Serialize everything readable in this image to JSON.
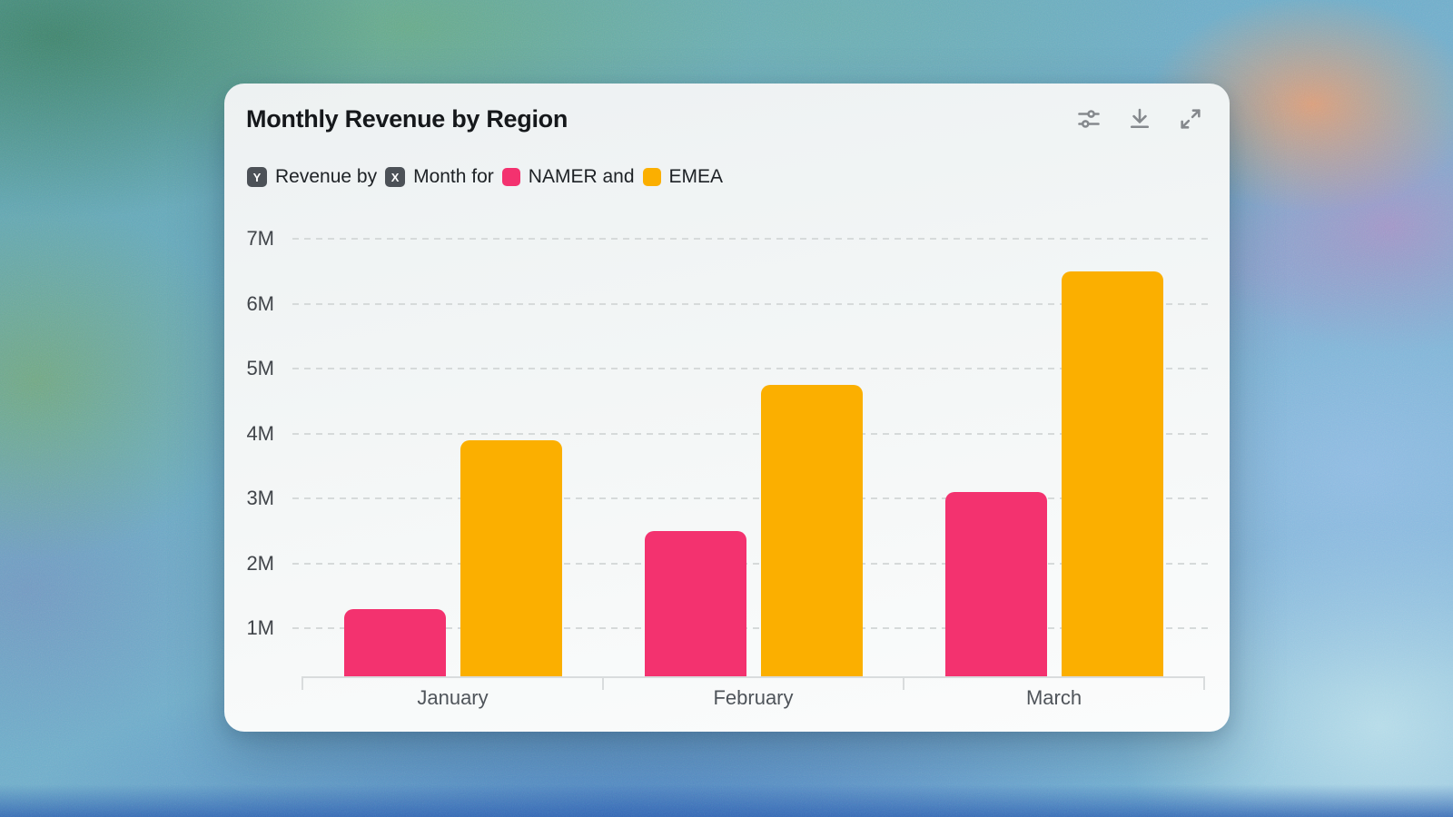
{
  "card": {
    "title": "Monthly Revenue by Region",
    "subtitle": {
      "y_axis_badge": "Y",
      "y_axis_text": "Revenue by",
      "x_axis_badge": "X",
      "x_axis_text": "Month for",
      "series_1_label": "NAMER and",
      "series_2_label": "EMEA"
    },
    "toolbar": {
      "icons": [
        "sliders",
        "download",
        "expand"
      ]
    }
  },
  "colors": {
    "namer_pink": "#F3326F",
    "emea_amber": "#FBAF00",
    "badge_background": "#4C5157",
    "icon_gray": "#85898D",
    "grid_gray": "#D6DADA",
    "card_background": "#F3F6F6"
  },
  "chart_data": {
    "type": "bar",
    "title": "Monthly Revenue by Region",
    "categories": [
      "January",
      "February",
      "March"
    ],
    "series": [
      {
        "name": "NAMER",
        "color": "#F3326F",
        "values": [
          1.3,
          2.5,
          3.1
        ]
      },
      {
        "name": "EMEA",
        "color": "#FBAF00",
        "values": [
          3.9,
          4.75,
          6.5
        ]
      }
    ],
    "unit": "millions (M)",
    "xlabel": "Month",
    "ylabel": "Revenue",
    "y_ticks": [
      {
        "label": "1M",
        "value": 1
      },
      {
        "label": "2M",
        "value": 2
      },
      {
        "label": "3M",
        "value": 3
      },
      {
        "label": "4M",
        "value": 4
      },
      {
        "label": "5M",
        "value": 5
      },
      {
        "label": "6M",
        "value": 6
      },
      {
        "label": "7M",
        "value": 7
      }
    ],
    "ylim": [
      0,
      7.5
    ],
    "grid": "horizontal-dashed",
    "legend_position": "inline-subtitle"
  }
}
